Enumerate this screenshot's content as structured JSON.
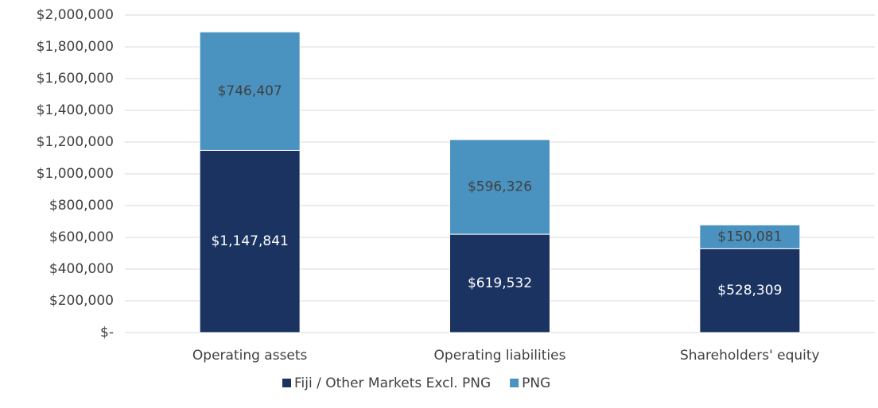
{
  "chart_data": {
    "type": "stacked_bar",
    "categories": [
      "Operating assets",
      "Operating liabilities",
      "Shareholders' equity"
    ],
    "series": [
      {
        "name": "Fiji / Other Markets Excl. PNG",
        "color": "#1b3361",
        "values": [
          1147841,
          619532,
          528309
        ],
        "value_labels": [
          "$1,147,841",
          "$619,532",
          "$528,309"
        ]
      },
      {
        "name": "PNG",
        "color": "#4a93c0",
        "values": [
          746407,
          596326,
          150081
        ],
        "value_labels": [
          "$746,407",
          "$596,326",
          "$150,081"
        ]
      }
    ],
    "ylim": [
      0,
      2000000
    ],
    "yticks": [
      {
        "value": 0,
        "label": "$-"
      },
      {
        "value": 200000,
        "label": "$200,000"
      },
      {
        "value": 400000,
        "label": "$400,000"
      },
      {
        "value": 600000,
        "label": "$600,000"
      },
      {
        "value": 800000,
        "label": "$800,000"
      },
      {
        "value": 1000000,
        "label": "$1,000,000"
      },
      {
        "value": 1200000,
        "label": "$1,200,000"
      },
      {
        "value": 1400000,
        "label": "$1,400,000"
      },
      {
        "value": 1600000,
        "label": "$1,600,000"
      },
      {
        "value": 1800000,
        "label": "$1,800,000"
      },
      {
        "value": 2000000,
        "label": "$2,000,000"
      }
    ],
    "grid": true,
    "legend": "bottom"
  }
}
